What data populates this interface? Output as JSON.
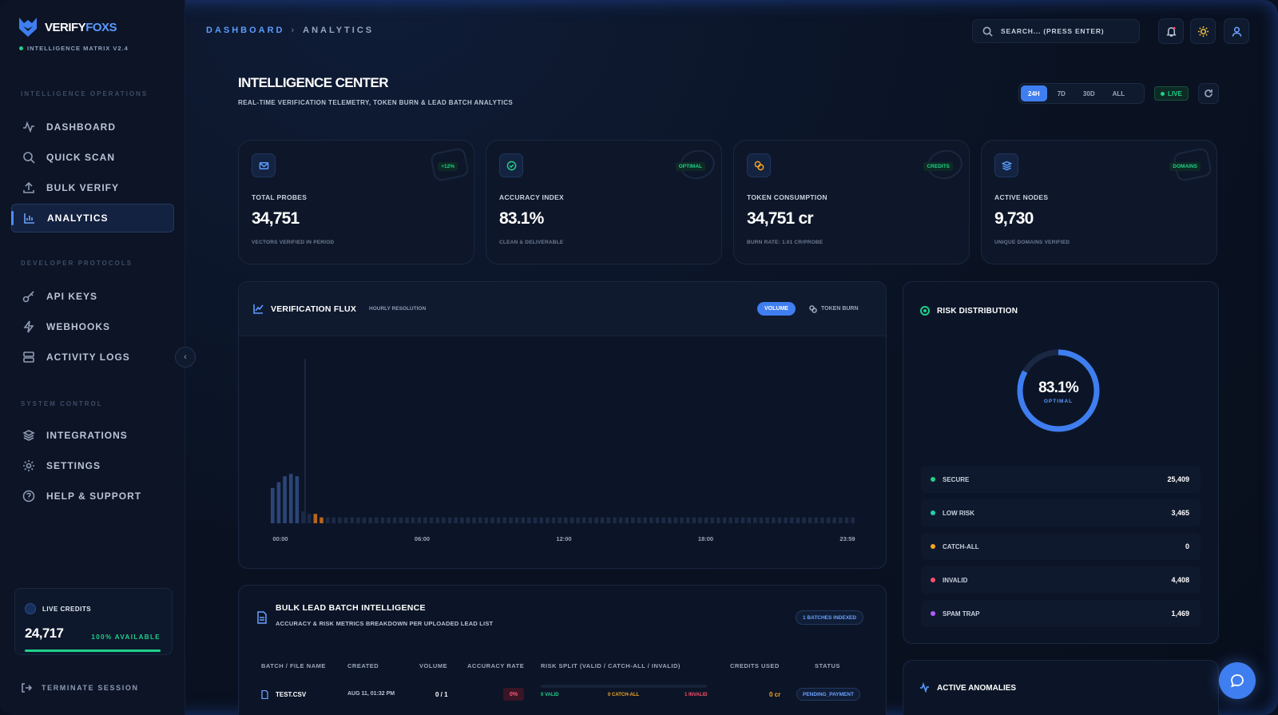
{
  "brand": {
    "name_a": "VERIFY",
    "name_b": "FOXS",
    "sub": "INTELLIGENCE MATRIX V2.4"
  },
  "sidebar": {
    "sections": [
      "INTELLIGENCE OPERATIONS",
      "DEVELOPER PROTOCOLS",
      "SYSTEM CONTROL"
    ],
    "items": [
      {
        "label": "DASHBOARD",
        "icon": "activity-icon"
      },
      {
        "label": "QUICK SCAN",
        "icon": "search-icon"
      },
      {
        "label": "BULK VERIFY",
        "icon": "upload-icon"
      },
      {
        "label": "ANALYTICS",
        "icon": "bar-chart-icon",
        "active": true
      },
      {
        "label": "API KEYS",
        "icon": "key-icon"
      },
      {
        "label": "WEBHOOKS",
        "icon": "bolt-icon"
      },
      {
        "label": "ACTIVITY LOGS",
        "icon": "server-icon"
      },
      {
        "label": "INTEGRATIONS",
        "icon": "layers-icon"
      },
      {
        "label": "SETTINGS",
        "icon": "gear-icon"
      },
      {
        "label": "HELP & SUPPORT",
        "icon": "help-icon"
      }
    ],
    "credits": {
      "label": "LIVE CREDITS",
      "value": "24,717",
      "available": "100% AVAILABLE",
      "fill": 1.0
    },
    "terminate": "TERMINATE SESSION"
  },
  "header": {
    "breadcrumb": [
      "DASHBOARD",
      "ANALYTICS"
    ],
    "breadcrumb_sep": "›",
    "search_placeholder": "SEARCH... (PRESS ENTER)"
  },
  "page": {
    "title": "INTELLIGENCE CENTER",
    "subtitle": "REAL-TIME VERIFICATION TELEMETRY, TOKEN BURN & LEAD BATCH ANALYTICS",
    "ranges": [
      "24H",
      "7D",
      "30D",
      "ALL"
    ],
    "active_range": "24H",
    "live": "LIVE"
  },
  "stats": [
    {
      "label": "TOTAL PROBES",
      "value": "34,751",
      "desc": "VECTORS VERIFIED IN PERIOD",
      "badge": "+12%",
      "icon": "mail-icon",
      "color": "#5b9bff"
    },
    {
      "label": "ACCURACY INDEX",
      "value": "83.1%",
      "desc": "CLEAN & DELIVERABLE",
      "badge": "OPTIMAL",
      "icon": "check-circle-icon",
      "color": "#1fd18a"
    },
    {
      "label": "TOKEN CONSUMPTION",
      "value": "34,751 cr",
      "desc": "BURN RATE: 1.01 CR/PROBE",
      "badge": "CREDITS",
      "icon": "coins-icon",
      "color": "#f5a524"
    },
    {
      "label": "ACTIVE NODES",
      "value": "9,730",
      "desc": "UNIQUE DOMAINS VERIFIED",
      "badge": "DOMAINS",
      "icon": "layers-icon",
      "color": "#5b9bff"
    }
  ],
  "flux": {
    "title": "VERIFICATION FLUX",
    "subtitle": "HOURLY RESOLUTION",
    "tab_volume": "VOLUME",
    "tab_burn": "TOKEN BURN",
    "x_ticks": [
      "00:00",
      "06:00",
      "12:00",
      "18:00",
      "23:59"
    ]
  },
  "chart_data": {
    "type": "bar",
    "title": "VERIFICATION FLUX",
    "xlabel": "",
    "ylabel": "",
    "x_range": [
      "00:00",
      "23:59"
    ],
    "values": [
      3,
      3.5,
      4,
      4.2,
      4,
      1,
      0.8,
      0.8,
      0.5,
      0.5,
      0.5,
      0.5,
      0.5,
      0.5,
      0.5,
      0.5,
      0.5,
      0.5,
      0.5,
      0.5,
      0.5,
      0.5,
      0.5,
      0.5,
      0.5,
      0.5,
      0.5,
      0.5,
      0.5,
      0.5,
      0.5,
      0.5,
      0.5,
      0.5,
      0.5,
      0.5,
      0.5,
      0.5,
      0.5,
      0.5,
      0.5,
      0.5,
      0.5,
      0.5,
      0.5,
      0.5,
      0.5,
      0.5,
      0.5,
      0.5,
      0.5,
      0.5,
      0.5,
      0.5,
      0.5,
      0.5,
      0.5,
      0.5,
      0.5,
      0.5,
      0.5,
      0.5,
      0.5,
      0.5,
      0.5,
      0.5,
      0.5,
      0.5,
      0.5,
      0.5,
      0.5,
      0.5,
      0.5,
      0.5,
      0.5,
      0.5,
      0.5,
      0.5,
      0.5,
      0.5,
      0.5,
      0.5,
      0.5,
      0.5,
      0.5,
      0.5,
      0.5,
      0.5,
      0.5,
      0.5,
      0.5,
      0.5,
      0.5,
      0.5,
      0.5,
      0.5
    ],
    "highlight_indices": [
      7,
      8
    ],
    "ylim": [
      0,
      14
    ],
    "grid": false
  },
  "risk": {
    "title": "RISK DISTRIBUTION",
    "center_value": "83.1%",
    "center_label": "OPTIMAL",
    "donut_fraction": 0.831,
    "rows": [
      {
        "label": "SECURE",
        "value": "25,409",
        "color": "#1fd18a"
      },
      {
        "label": "LOW RISK",
        "value": "3,465",
        "color": "#1fd1a8"
      },
      {
        "label": "CATCH-ALL",
        "value": "0",
        "color": "#f5a524"
      },
      {
        "label": "INVALID",
        "value": "4,408",
        "color": "#ff4d6a"
      },
      {
        "label": "SPAM TRAP",
        "value": "1,469",
        "color": "#b05cff"
      }
    ]
  },
  "bulk": {
    "title": "BULK LEAD BATCH INTELLIGENCE",
    "subtitle": "ACCURACY & RISK METRICS BREAKDOWN PER UPLOADED LEAD LIST",
    "badge": "1 BATCHES INDEXED",
    "headers": [
      "BATCH / FILE NAME",
      "CREATED",
      "VOLUME",
      "ACCURACY RATE",
      "RISK SPLIT (VALID / CATCH-ALL / INVALID)",
      "CREDITS USED",
      "STATUS"
    ],
    "row": {
      "file": "TEST.CSV",
      "created": "AUG 11, 01:32 PM",
      "volume": "0 / 1",
      "accuracy": "0%",
      "valid": "0 VALID",
      "catchall": "0 CATCH-ALL",
      "invalid": "1 INVALID",
      "credits": "0 cr",
      "status": "PENDING_PAYMENT"
    }
  },
  "anomalies": {
    "title": "ACTIVE ANOMALIES"
  }
}
